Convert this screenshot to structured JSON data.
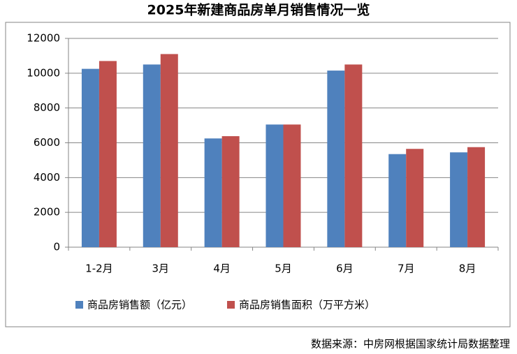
{
  "chart_data": {
    "type": "bar",
    "title": "2025年新建商品房单月销售情况一览",
    "categories": [
      "1-2月",
      "3月",
      "4月",
      "5月",
      "6月",
      "7月",
      "8月"
    ],
    "series": [
      {
        "name": "商品房销售额（亿元）",
        "color": "#4f81bd",
        "values": [
          10250,
          10500,
          6250,
          7050,
          10150,
          5350,
          5450
        ]
      },
      {
        "name": "商品房销售面积（万平方米）",
        "color": "#c0504d",
        "values": [
          10700,
          11100,
          6380,
          7050,
          10500,
          5650,
          5750
        ]
      }
    ],
    "ylim": [
      0,
      12000
    ],
    "yticks": [
      0,
      2000,
      4000,
      6000,
      8000,
      10000,
      12000
    ],
    "grid": true,
    "source": "数据来源：中房网根据国家统计局数据整理"
  }
}
